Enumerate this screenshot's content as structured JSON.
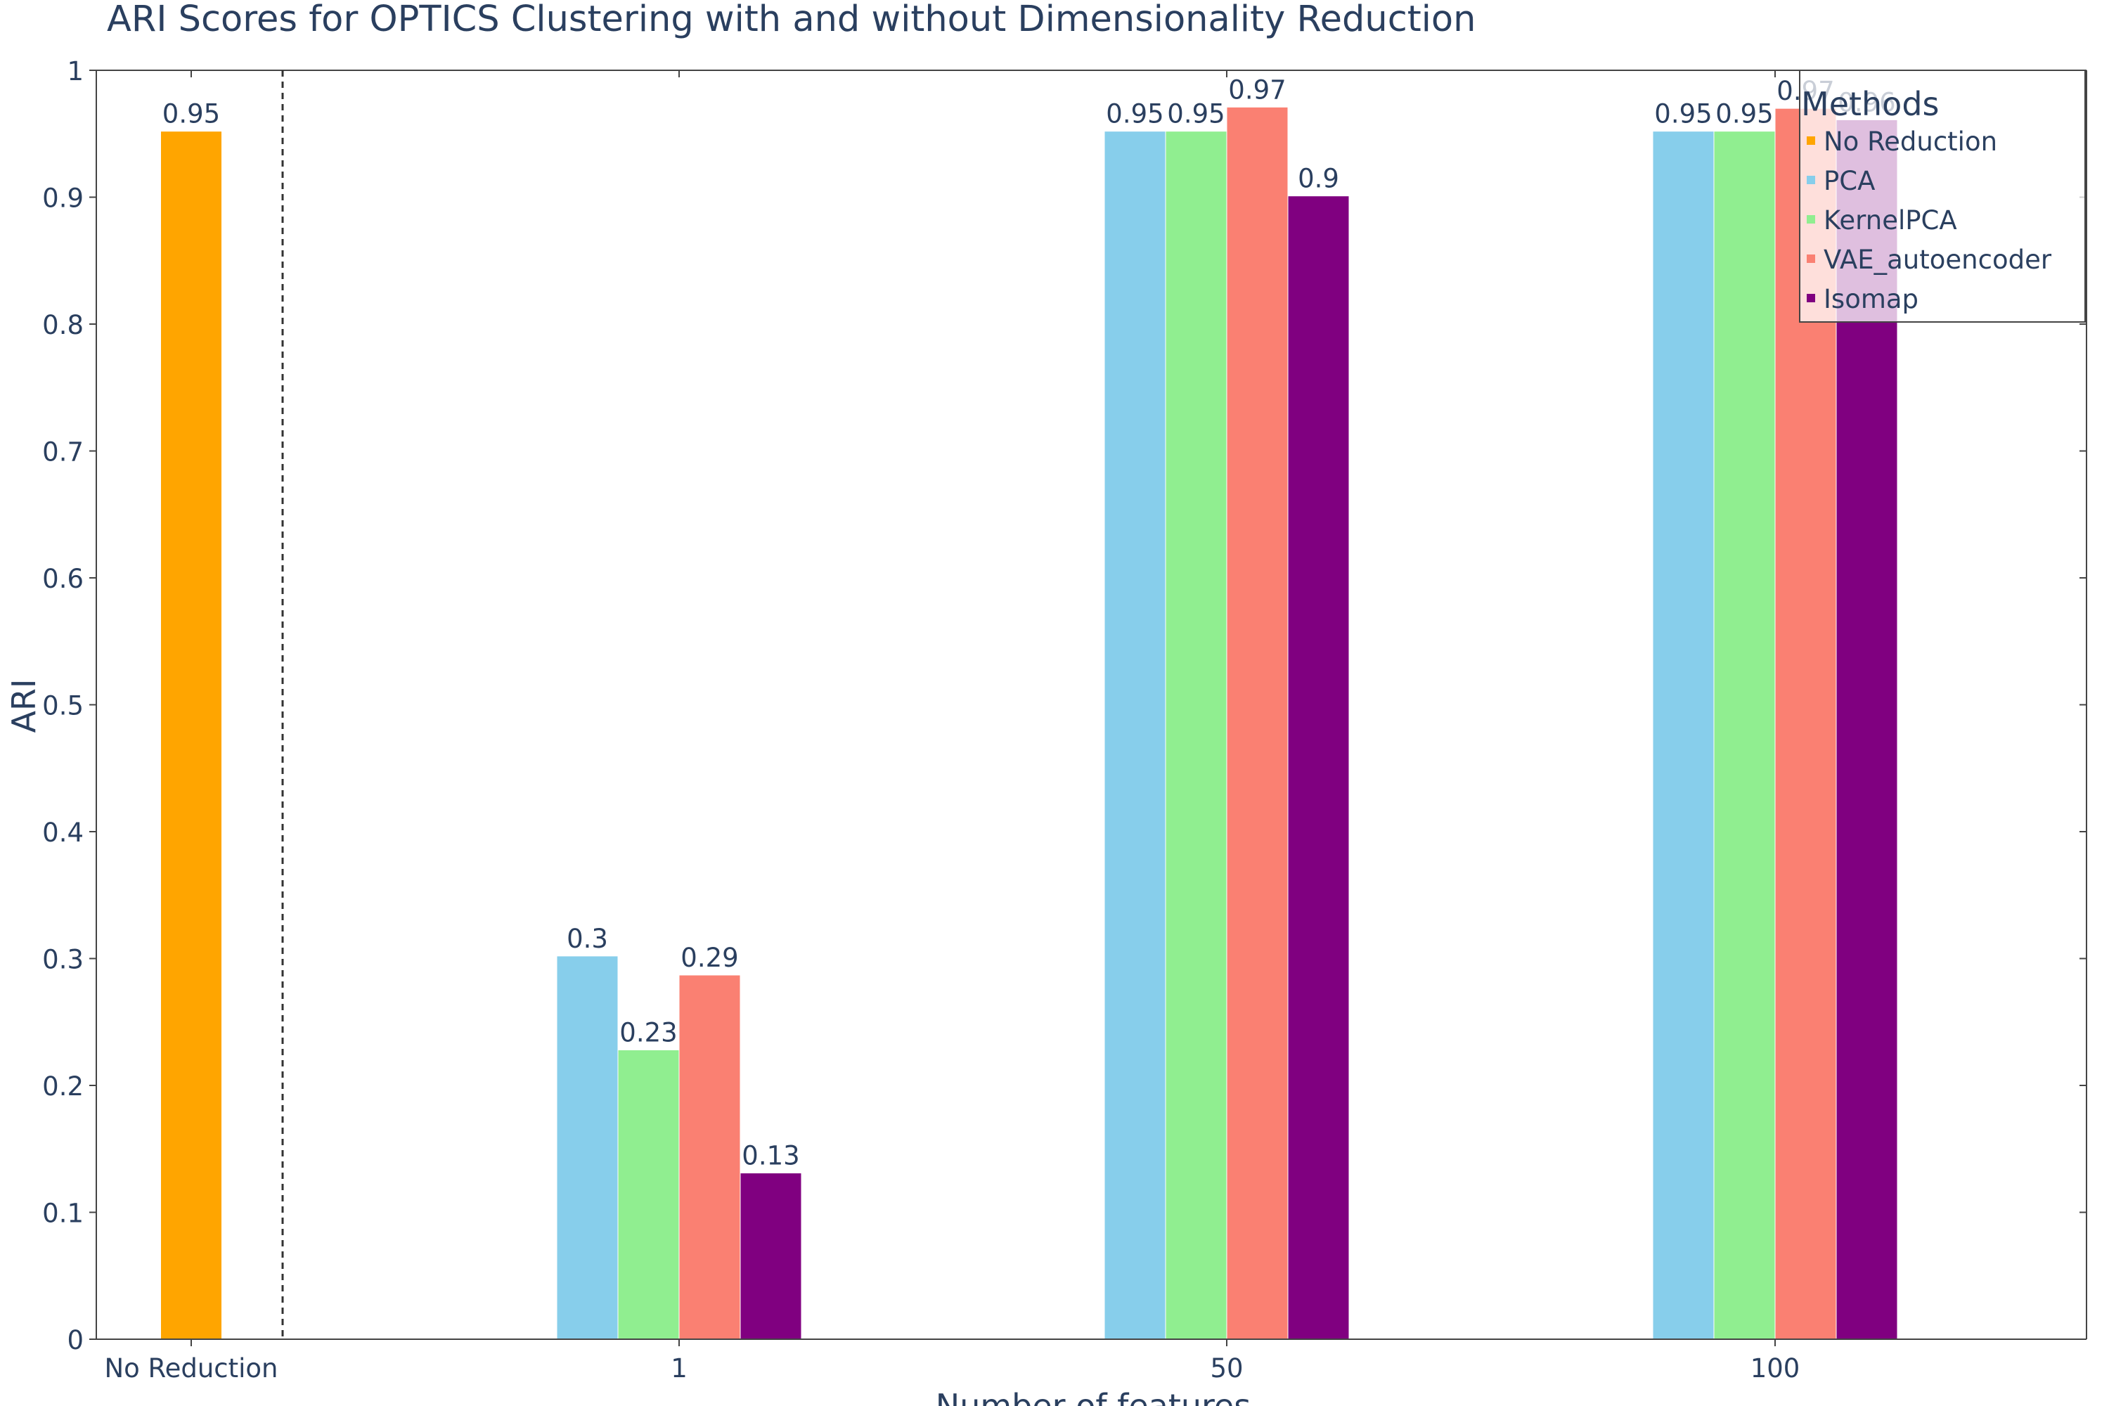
{
  "chart_data": {
    "type": "bar",
    "title": "ARI Scores for OPTICS Clustering with and without Dimensionality Reduction",
    "xlabel": "Number of features",
    "ylabel": "ARI",
    "ylim": [
      0,
      1
    ],
    "yticks": [
      0,
      0.1,
      0.2,
      0.3,
      0.4,
      0.5,
      0.6,
      0.7,
      0.8,
      0.9,
      1
    ],
    "ytick_labels": [
      "0",
      "0.1",
      "0.2",
      "0.3",
      "0.4",
      "0.5",
      "0.6",
      "0.7",
      "0.8",
      "0.9",
      "1"
    ],
    "categories": [
      "No Reduction",
      "1",
      "50",
      "100"
    ],
    "grid": false,
    "legend": {
      "title": "Methods",
      "placement": "top-right"
    },
    "separator": {
      "type": "dashed-vertical",
      "between": [
        "No Reduction",
        "1"
      ]
    },
    "series": [
      {
        "name": "No Reduction",
        "color": "#FFA500",
        "values": [
          0.952,
          null,
          null,
          null
        ],
        "labels": [
          "0.95",
          "",
          "",
          ""
        ]
      },
      {
        "name": "PCA",
        "color": "#87CEEB",
        "values": [
          null,
          0.302,
          0.952,
          0.952
        ],
        "labels": [
          "",
          "0.3",
          "0.95",
          "0.95"
        ]
      },
      {
        "name": "KernelPCA",
        "color": "#90EE90",
        "values": [
          null,
          0.228,
          0.952,
          0.952
        ],
        "labels": [
          "",
          "0.23",
          "0.95",
          "0.95"
        ]
      },
      {
        "name": "VAE_autoencoder",
        "color": "#FA8072",
        "values": [
          null,
          0.287,
          0.971,
          0.97
        ],
        "labels": [
          "",
          "0.29",
          "0.97",
          "0.97"
        ]
      },
      {
        "name": "Isomap",
        "color": "#800080",
        "values": [
          null,
          0.131,
          0.901,
          0.961
        ],
        "labels": [
          "",
          "0.13",
          "0.9",
          "0.96"
        ]
      }
    ]
  }
}
